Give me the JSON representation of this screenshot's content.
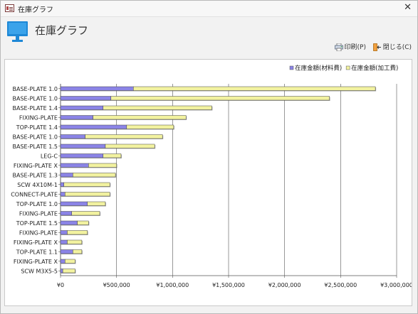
{
  "window": {
    "title": "在庫グラフ",
    "close_glyph": "✕"
  },
  "header": {
    "title": "在庫グラフ",
    "icon": "monitor-icon"
  },
  "toolbar": {
    "print_label": "印刷(P)",
    "print_icon": "printer-icon",
    "close_label": "閉じる(C)",
    "close_icon": "exit-door-icon"
  },
  "colors": {
    "material": "#8b84e6",
    "processing": "#f2f2a0",
    "window_bg": "#f2f2f2",
    "chart_bg": "#ffffff"
  },
  "chart_data": {
    "type": "bar",
    "orientation": "horizontal",
    "stacked": true,
    "categories": [
      "BASE-PLATE 1.0",
      "BASE-PLATE 1.0",
      "BASE-PLATE 1.4",
      "FIXING-PLATE",
      "TOP-PLATE 1.4",
      "BASE-PLATE 1.0",
      "BASE-PLATE 1.5",
      "LEG-C",
      "FIXING-PLATE X",
      "BASE-PLATE 1.3",
      "SCW 4X10M-1",
      "CONNECT-PLATE",
      "TOP-PLATE 1.0",
      "FIXING-PLATE",
      "TOP-PLATE 1.5",
      "FIXING-PLATE",
      "FIXING-PLATE X",
      "TOP-PLATE 1.1",
      "FIXING-PLATE X",
      "SCW M3X5-5"
    ],
    "series": [
      {
        "name": "在庫金額(材料費)",
        "color": "#8b84e6",
        "values": [
          650000,
          450000,
          380000,
          290000,
          590000,
          220000,
          400000,
          380000,
          250000,
          110000,
          30000,
          40000,
          240000,
          100000,
          150000,
          60000,
          60000,
          110000,
          40000,
          20000
        ]
      },
      {
        "name": "在庫金額(加工費)",
        "color": "#f2f2a0",
        "values": [
          2160000,
          1950000,
          970000,
          830000,
          420000,
          690000,
          440000,
          160000,
          250000,
          380000,
          410000,
          400000,
          160000,
          250000,
          100000,
          180000,
          130000,
          80000,
          90000,
          110000
        ]
      }
    ],
    "xlim": [
      0,
      3000000
    ],
    "xticks": [
      0,
      500000,
      1000000,
      1500000,
      2000000,
      2500000,
      3000000
    ],
    "xtick_labels": [
      "¥0",
      "¥500,000",
      "¥1,000,000",
      "¥1,500,000",
      "¥2,000,000",
      "¥2,500,000",
      "¥3,000,000"
    ],
    "grid": true,
    "legend_position": "top-right",
    "title": "",
    "xlabel": "",
    "ylabel": ""
  }
}
